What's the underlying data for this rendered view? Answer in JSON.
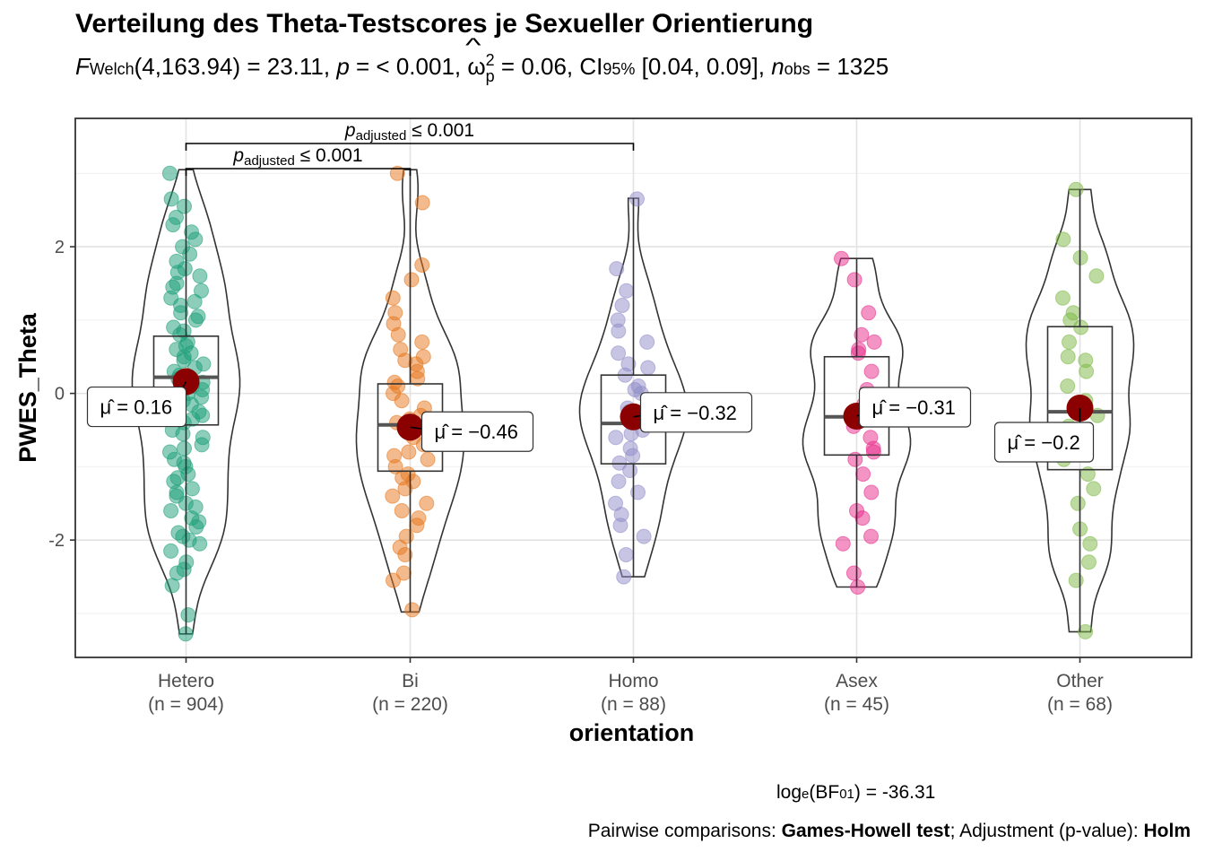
{
  "subtitle": {
    "f_symbol": "F",
    "f_sub": "Welch",
    "df_stat": "(4,163.94) = 23.11, ",
    "p_symbol": "p",
    "p_text": " = < 0.001, ",
    "omega": "ω",
    "omega_sub": "p",
    "omega_sup": "2",
    "omega_text": " = 0.06, CI",
    "ci_sub": "95%",
    "ci_text": " [0.04, 0.09], ",
    "n_symbol": "n",
    "n_sub": "obs",
    "n_text": " = 1325"
  },
  "caption": {
    "bf_prefix": "log",
    "bf_sub_e": "e",
    "bf_mid": "(BF",
    "bf_sub": "01",
    "bf_value": ") = -36.31",
    "pairwise_prefix": "Pairwise comparisons: ",
    "pairwise_test": "Games-Howell test",
    "pairwise_mid": "; Adjustment (p-value): ",
    "pairwise_method": "Holm"
  },
  "chart_data": {
    "type": "violin-box-scatter",
    "title": "Verteilung des Theta-Testscores je Sexueller Orientierung",
    "xlabel": "orientation",
    "ylabel": "PWES_Theta",
    "ylim": [
      -3.6,
      3.75
    ],
    "yticks": [
      -2,
      0,
      2
    ],
    "grid": true,
    "categories": [
      "Hetero",
      "Bi",
      "Homo",
      "Asex",
      "Other"
    ],
    "counts": [
      "(n = 904)",
      "(n = 220)",
      "(n = 88)",
      "(n = 45)",
      "(n = 68)"
    ],
    "colors": [
      "#1B9E77",
      "#E6761B",
      "#8F8CC8",
      "#E7298A",
      "#7CB844"
    ],
    "mean_color": "#8B0000",
    "mean_values": [
      0.16,
      -0.46,
      -0.32,
      -0.31,
      -0.2
    ],
    "mean_labels": [
      "0.16",
      "−0.46",
      "−0.32",
      "−0.31",
      "−0.2"
    ],
    "box": [
      {
        "q1": -0.43,
        "median": 0.22,
        "q3": 0.78,
        "min": -3.28,
        "max": 3.05
      },
      {
        "q1": -1.06,
        "median": -0.43,
        "q3": 0.13,
        "min": -2.98,
        "max": 3.05
      },
      {
        "q1": -0.96,
        "median": -0.41,
        "q3": 0.25,
        "min": -2.5,
        "max": 2.66
      },
      {
        "q1": -0.84,
        "median": -0.32,
        "q3": 0.5,
        "min": -2.64,
        "max": 1.84
      },
      {
        "q1": -1.04,
        "median": -0.25,
        "q3": 0.91,
        "min": -3.25,
        "max": 2.78
      }
    ],
    "points": [
      [
        -3.28,
        -3.02,
        -2.62,
        -2.45,
        -2.4,
        -2.3,
        -2.15,
        -2.05,
        -2.0,
        -1.95,
        -1.9,
        -1.82,
        -1.7,
        -1.6,
        -1.5,
        -1.4,
        -1.3,
        -1.2,
        -1.1,
        -1.0,
        -0.9,
        -0.8,
        -0.7,
        -0.6,
        -0.5,
        -0.4,
        -0.3,
        -0.2,
        -0.1,
        0.0,
        0.1,
        0.2,
        0.3,
        0.4,
        0.5,
        0.6,
        0.7,
        0.8,
        0.9,
        1.0,
        1.1,
        1.2,
        1.3,
        1.4,
        1.5,
        1.6,
        1.7,
        1.8,
        1.9,
        2.0,
        2.1,
        2.2,
        2.3,
        2.4,
        2.55,
        2.65,
        3.0,
        -0.55,
        -0.35,
        -0.15,
        0.05,
        0.25,
        0.45,
        0.65,
        0.85,
        1.05,
        -0.75,
        -0.95,
        -1.15,
        -1.35,
        1.25,
        1.45,
        1.65,
        -1.55,
        -1.75,
        0.15,
        -0.05,
        -0.25,
        0.35,
        0.55
      ],
      [
        -2.95,
        -2.55,
        -2.45,
        -2.2,
        -2.1,
        -1.95,
        -1.8,
        -1.7,
        -1.6,
        -1.5,
        -1.4,
        -1.3,
        -1.2,
        -1.1,
        -1.0,
        -0.9,
        -0.8,
        -0.7,
        -0.6,
        -0.5,
        -0.4,
        -0.3,
        -0.2,
        -0.1,
        0.0,
        0.1,
        0.2,
        0.3,
        0.4,
        0.5,
        0.6,
        0.7,
        0.8,
        0.95,
        1.1,
        1.3,
        1.55,
        1.75,
        2.6,
        3.0,
        -0.55,
        -0.85,
        -1.15,
        -0.35,
        0.15,
        0.45
      ],
      [
        -2.5,
        -2.2,
        -1.95,
        -1.8,
        -1.65,
        -1.5,
        -1.35,
        -1.2,
        -1.05,
        -0.95,
        -0.85,
        -0.75,
        -0.6,
        -0.5,
        -0.4,
        -0.3,
        -0.2,
        -0.1,
        0.0,
        0.1,
        0.25,
        0.4,
        0.55,
        0.7,
        0.85,
        1.0,
        1.2,
        1.4,
        1.7,
        2.65,
        -0.55,
        -0.25,
        0.05,
        0.35
      ],
      [
        -2.64,
        -2.45,
        -2.05,
        -1.95,
        -1.7,
        -1.6,
        -1.35,
        -1.1,
        -0.9,
        -0.75,
        -0.6,
        -0.45,
        -0.3,
        -0.15,
        0.05,
        0.3,
        0.55,
        0.7,
        0.8,
        1.1,
        1.55,
        1.84,
        -0.8,
        0.6
      ],
      [
        -3.25,
        -2.55,
        -2.3,
        -2.05,
        -1.85,
        -1.5,
        -1.3,
        -1.1,
        -0.9,
        -0.7,
        -0.5,
        -0.3,
        -0.1,
        0.1,
        0.3,
        0.5,
        0.7,
        0.9,
        1.1,
        1.3,
        1.6,
        1.85,
        2.1,
        2.78,
        -0.45,
        0.45,
        1.0
      ]
    ],
    "comparisons": [
      {
        "from": "Hetero",
        "to": "Bi",
        "label_symbol": "p",
        "label_sub": "adjusted",
        "label_text": "≤ 0.001"
      },
      {
        "from": "Hetero",
        "to": "Homo",
        "label_symbol": "p",
        "label_sub": "adjusted",
        "label_text": "≤ 0.001"
      }
    ]
  }
}
